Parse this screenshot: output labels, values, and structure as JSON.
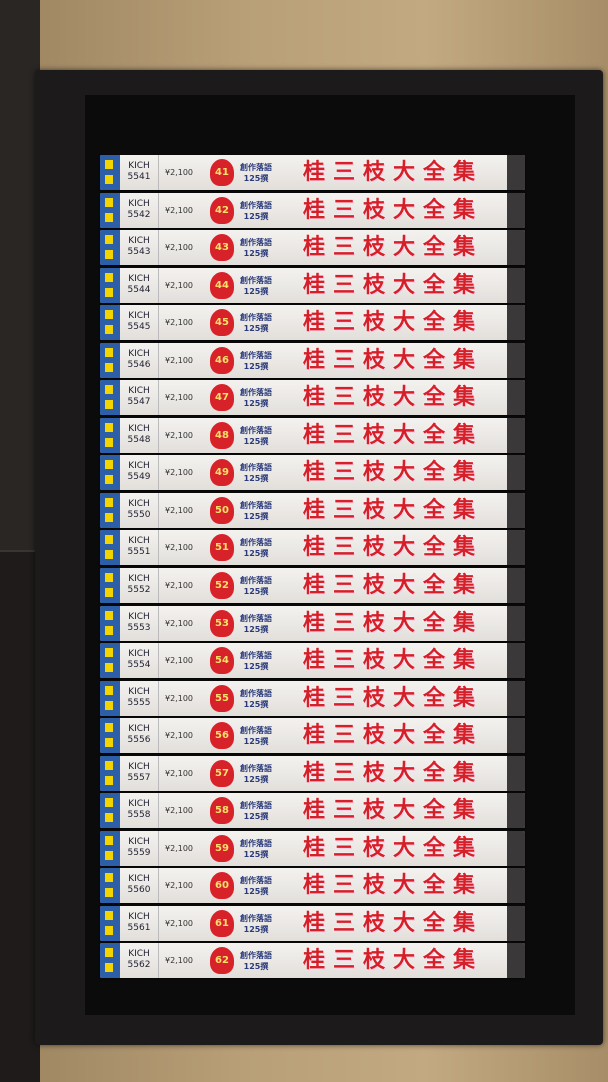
{
  "colors": {
    "title_red": "#d5202a",
    "stripe_blue": "#2c5fa8",
    "stripe_yellow": "#f2d500",
    "box": "#1c1a1a"
  },
  "spines": [
    {
      "title": "桂三枝大全集",
      "series": "創作落語125撰",
      "number": "41",
      "price": "¥2,100",
      "catalog": "KICH 5541"
    },
    {
      "title": "桂三枝大全集",
      "series": "創作落語125撰",
      "number": "42",
      "price": "¥2,100",
      "catalog": "KICH 5542"
    },
    {
      "title": "桂三枝大全集",
      "series": "創作落語125撰",
      "number": "43",
      "price": "¥2,100",
      "catalog": "KICH 5543"
    },
    {
      "title": "桂三枝大全集",
      "series": "創作落語125撰",
      "number": "44",
      "price": "¥2,100",
      "catalog": "KICH 5544"
    },
    {
      "title": "桂三枝大全集",
      "series": "創作落語125撰",
      "number": "45",
      "price": "¥2,100",
      "catalog": "KICH 5545"
    },
    {
      "title": "桂三枝大全集",
      "series": "創作落語125撰",
      "number": "46",
      "price": "¥2,100",
      "catalog": "KICH 5546"
    },
    {
      "title": "桂三枝大全集",
      "series": "創作落語125撰",
      "number": "47",
      "price": "¥2,100",
      "catalog": "KICH 5547"
    },
    {
      "title": "桂三枝大全集",
      "series": "創作落語125撰",
      "number": "48",
      "price": "¥2,100",
      "catalog": "KICH 5548"
    },
    {
      "title": "桂三枝大全集",
      "series": "創作落語125撰",
      "number": "49",
      "price": "¥2,100",
      "catalog": "KICH 5549"
    },
    {
      "title": "桂三枝大全集",
      "series": "創作落語125撰",
      "number": "50",
      "price": "¥2,100",
      "catalog": "KICH 5550"
    },
    {
      "title": "桂三枝大全集",
      "series": "創作落語125撰",
      "number": "51",
      "price": "¥2,100",
      "catalog": "KICH 5551"
    },
    {
      "title": "桂三枝大全集",
      "series": "創作落語125撰",
      "number": "52",
      "price": "¥2,100",
      "catalog": "KICH 5552"
    },
    {
      "title": "桂三枝大全集",
      "series": "創作落語125撰",
      "number": "53",
      "price": "¥2,100",
      "catalog": "KICH 5553"
    },
    {
      "title": "桂三枝大全集",
      "series": "創作落語125撰",
      "number": "54",
      "price": "¥2,100",
      "catalog": "KICH 5554"
    },
    {
      "title": "桂三枝大全集",
      "series": "創作落語125撰",
      "number": "55",
      "price": "¥2,100",
      "catalog": "KICH 5555"
    },
    {
      "title": "桂三枝大全集",
      "series": "創作落語125撰",
      "number": "56",
      "price": "¥2,100",
      "catalog": "KICH 5556"
    },
    {
      "title": "桂三枝大全集",
      "series": "創作落語125撰",
      "number": "57",
      "price": "¥2,100",
      "catalog": "KICH 5557"
    },
    {
      "title": "桂三枝大全集",
      "series": "創作落語125撰",
      "number": "58",
      "price": "¥2,100",
      "catalog": "KICH 5558"
    },
    {
      "title": "桂三枝大全集",
      "series": "創作落語125撰",
      "number": "59",
      "price": "¥2,100",
      "catalog": "KICH 5559"
    },
    {
      "title": "桂三枝大全集",
      "series": "創作落語125撰",
      "number": "60",
      "price": "¥2,100",
      "catalog": "KICH 5560"
    },
    {
      "title": "桂三枝大全集",
      "series": "創作落語125撰",
      "number": "61",
      "price": "¥2,100",
      "catalog": "KICH 5561"
    },
    {
      "title": "桂三枝大全集",
      "series": "創作落語125撰",
      "number": "62",
      "price": "¥2,100",
      "catalog": "KICH 5562"
    }
  ]
}
